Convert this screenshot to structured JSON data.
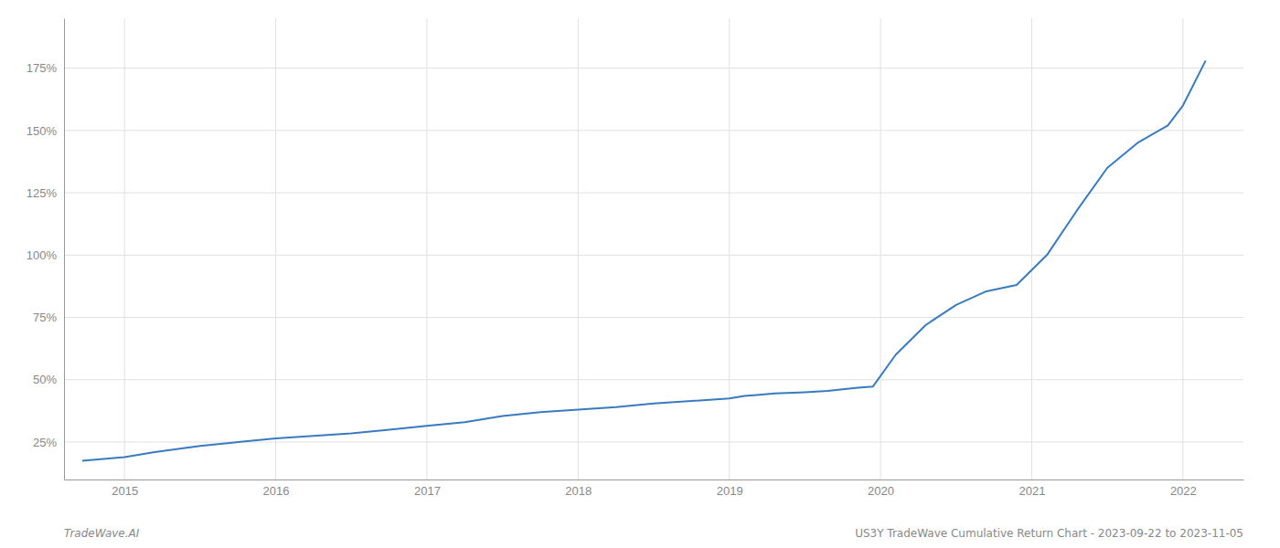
{
  "chart_data": {
    "type": "line",
    "annotations": [
      "TradeWave.AI",
      "US3Y TradeWave Cumulative Return Chart - 2023-09-22 to 2023-11-05"
    ],
    "x": [
      2014.72,
      2015.0,
      2015.2,
      2015.5,
      2015.75,
      2016.0,
      2016.25,
      2016.5,
      2016.75,
      2017.0,
      2017.25,
      2017.5,
      2017.75,
      2018.0,
      2018.25,
      2018.5,
      2018.75,
      2019.0,
      2019.1,
      2019.2,
      2019.3,
      2019.5,
      2019.65,
      2019.75,
      2019.85,
      2019.95,
      2020.1,
      2020.3,
      2020.5,
      2020.7,
      2020.9,
      2021.1,
      2021.3,
      2021.5,
      2021.7,
      2021.9,
      2022.0,
      2022.15
    ],
    "values": [
      0.175,
      0.19,
      0.21,
      0.235,
      0.25,
      0.265,
      0.275,
      0.285,
      0.3,
      0.315,
      0.33,
      0.355,
      0.37,
      0.38,
      0.39,
      0.405,
      0.415,
      0.425,
      0.435,
      0.44,
      0.445,
      0.45,
      0.455,
      0.462,
      0.468,
      0.473,
      0.6,
      0.72,
      0.8,
      0.855,
      0.88,
      1.0,
      1.18,
      1.35,
      1.45,
      1.52,
      1.6,
      1.78
    ],
    "color": "#3a7abf",
    "xlim": [
      2014.6,
      2022.4
    ],
    "ylim": [
      0.1,
      1.95
    ],
    "xticks": [
      2015,
      2016,
      2017,
      2018,
      2019,
      2020,
      2021,
      2022
    ],
    "yticks": [
      {
        "value": 0.25,
        "label": "25%"
      },
      {
        "value": 0.5,
        "label": "50%"
      },
      {
        "value": 0.75,
        "label": "75%"
      },
      {
        "value": 1.0,
        "label": "100%"
      },
      {
        "value": 1.25,
        "label": "125%"
      },
      {
        "value": 1.5,
        "label": "150%"
      },
      {
        "value": 1.75,
        "label": "175%"
      }
    ],
    "grid": true
  }
}
